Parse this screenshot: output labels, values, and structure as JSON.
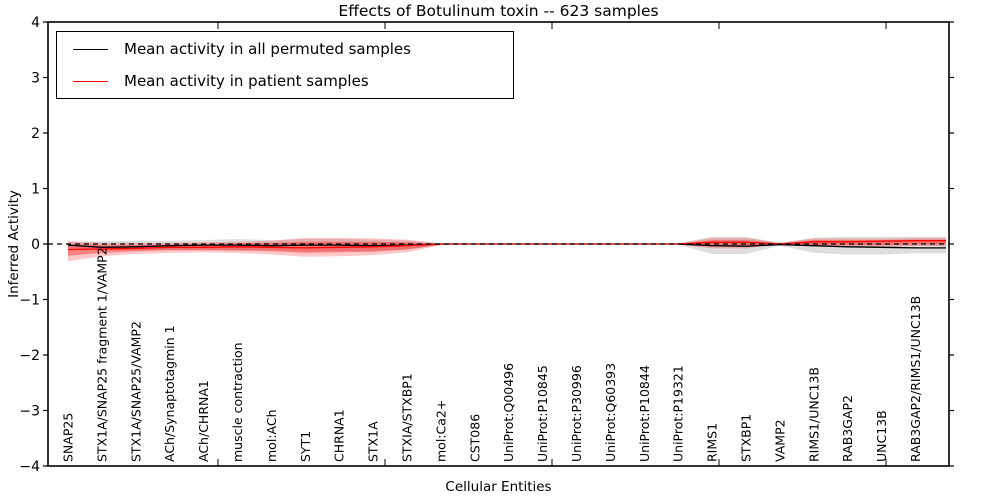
{
  "chart_data": {
    "type": "line",
    "title": "Effects of Botulinum toxin -- 623 samples",
    "xlabel": "Cellular Entities",
    "ylabel": "Inferred Activity",
    "ylim": [
      -4,
      4
    ],
    "yticks": [
      4,
      3,
      2,
      1,
      0,
      -1,
      -2,
      -3,
      -4
    ],
    "grid": false,
    "legend_position": "upper left",
    "zero_line": {
      "y": 0,
      "style": "dashed",
      "color": "#000000"
    },
    "categories": [
      "SNAP25",
      "STX1A/SNAP25 fragment 1/VAMP2",
      "STX1A/SNAP25/VAMP2",
      "ACh/Synaptotagmin 1",
      "ACh/CHRNA1",
      "muscle contraction",
      "mol:ACh",
      "SYT1",
      "CHRNA1",
      "STX1A",
      "STXIA/STXBP1",
      "mol:Ca2+",
      "CST086",
      "UniProt:Q00496",
      "UniProt:P10845",
      "UniProt:P30996",
      "UniProt:Q60393",
      "UniProt:P10844",
      "UniProt:P19321",
      "RIMS1",
      "STXBP1",
      "VAMP2",
      "RIMS1/UNC13B",
      "RAB3GAP2",
      "UNC13B",
      "RAB3GAP2/RIMS1/UNC13B"
    ],
    "series": [
      {
        "name": "Mean activity in all permuted samples",
        "color": "#000000",
        "style": "solid",
        "values": [
          -0.02,
          -0.06,
          -0.05,
          -0.03,
          -0.02,
          -0.02,
          -0.03,
          -0.02,
          -0.02,
          -0.03,
          -0.02,
          0,
          0,
          0,
          0,
          0,
          0,
          0,
          0,
          -0.03,
          -0.04,
          -0.01,
          -0.03,
          -0.05,
          -0.06,
          -0.07
        ]
      },
      {
        "name": "Mean activity in patient samples",
        "color": "#ff0000",
        "style": "solid",
        "values": [
          -0.1,
          -0.09,
          -0.08,
          -0.06,
          -0.06,
          -0.05,
          -0.06,
          -0.07,
          -0.06,
          -0.05,
          -0.03,
          0,
          0,
          0,
          0,
          0,
          0,
          0,
          0,
          0.03,
          0.03,
          0.0,
          0.04,
          0.04,
          0.05,
          0.06
        ]
      }
    ],
    "bands": [
      {
        "name": "permuted samples range",
        "color": "#000000",
        "opacity": 0.13,
        "hi": [
          0.03,
          0.05,
          0.06,
          0.06,
          0.07,
          0.09,
          0.07,
          0.09,
          0.09,
          0.08,
          0.06,
          0.01,
          0,
          0,
          0,
          0,
          0,
          0,
          0.01,
          0.13,
          0.13,
          0.02,
          0.11,
          0.13,
          0.13,
          0.13
        ],
        "lo": [
          -0.07,
          -0.11,
          -0.11,
          -0.11,
          -0.11,
          -0.13,
          -0.11,
          -0.13,
          -0.13,
          -0.12,
          -0.1,
          -0.02,
          0,
          0,
          0,
          0,
          0,
          0,
          -0.01,
          -0.18,
          -0.18,
          -0.03,
          -0.16,
          -0.19,
          -0.19,
          -0.17
        ]
      },
      {
        "name": "patient samples outer range",
        "color": "#ff0000",
        "opacity": 0.22,
        "hi": [
          0.06,
          0.02,
          0.02,
          0.02,
          0.03,
          0.04,
          0.06,
          0.11,
          0.11,
          0.1,
          0.08,
          0.01,
          0,
          0,
          0,
          0,
          0,
          0,
          0.01,
          0.11,
          0.11,
          0.02,
          0.1,
          0.1,
          0.1,
          0.11
        ],
        "lo": [
          -0.31,
          -0.22,
          -0.18,
          -0.16,
          -0.15,
          -0.16,
          -0.19,
          -0.23,
          -0.22,
          -0.2,
          -0.15,
          -0.02,
          0,
          0,
          0,
          0,
          0,
          0,
          -0.01,
          -0.08,
          -0.08,
          -0.01,
          -0.05,
          -0.05,
          -0.05,
          -0.04
        ]
      },
      {
        "name": "patient samples inner range",
        "color": "#ff0000",
        "opacity": 0.35,
        "hi": [
          0.0,
          -0.02,
          -0.02,
          -0.01,
          0.0,
          0.01,
          0.02,
          0.04,
          0.04,
          0.04,
          0.03,
          0.0,
          0,
          0,
          0,
          0,
          0,
          0,
          0.0,
          0.07,
          0.07,
          0.01,
          0.07,
          0.07,
          0.07,
          0.08
        ],
        "lo": [
          -0.21,
          -0.16,
          -0.13,
          -0.11,
          -0.11,
          -0.11,
          -0.13,
          -0.16,
          -0.15,
          -0.14,
          -0.1,
          -0.01,
          0,
          0,
          0,
          0,
          0,
          0,
          -0.01,
          -0.04,
          -0.04,
          0.0,
          -0.02,
          -0.02,
          -0.02,
          -0.01
        ]
      }
    ]
  }
}
